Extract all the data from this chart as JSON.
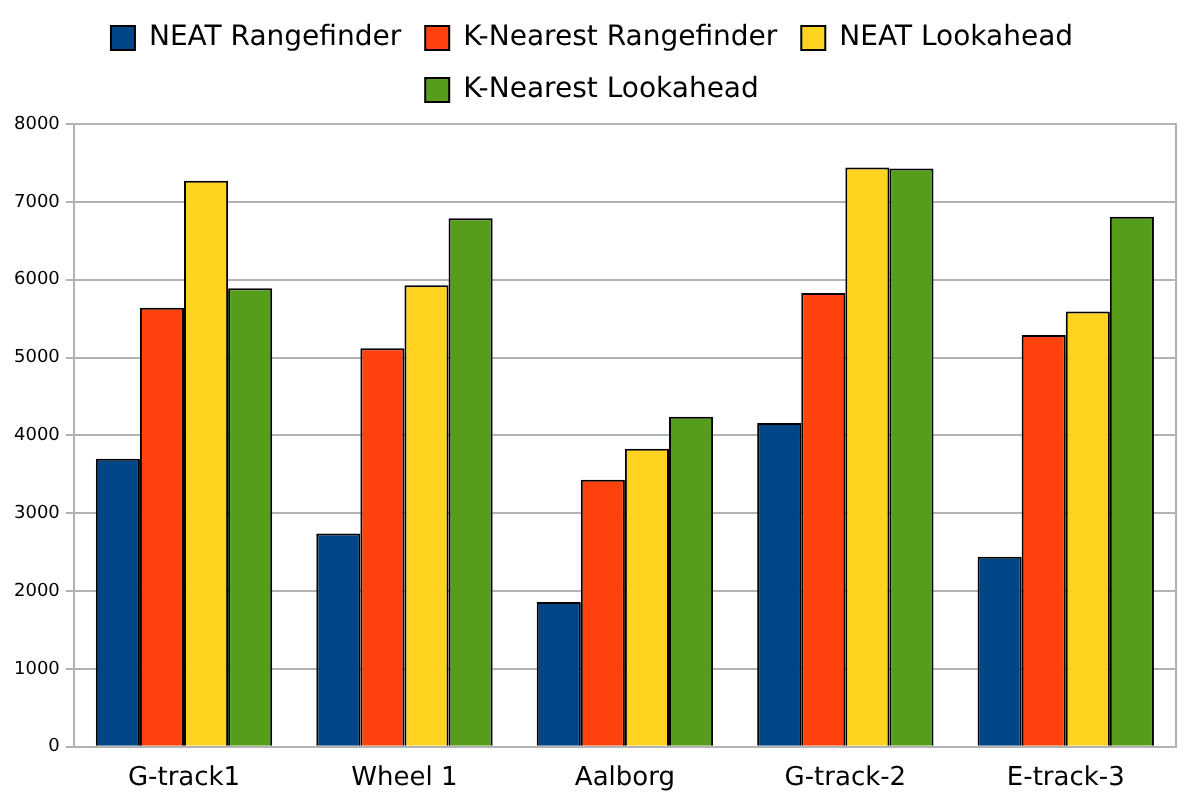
{
  "chart_data": {
    "type": "bar",
    "categories": [
      "G-track1",
      "Wheel 1",
      "Aalborg",
      "G-track-2",
      "E-track-3"
    ],
    "series": [
      {
        "name": "NEAT Rangefinder",
        "color": "#004586",
        "values": [
          3700,
          2740,
          1860,
          4160,
          2440
        ]
      },
      {
        "name": "K-Nearest Rangefinder",
        "color": "#ff420e",
        "values": [
          5640,
          5120,
          3430,
          5830,
          5290
        ]
      },
      {
        "name": "NEAT Lookahead",
        "color": "#ffd320",
        "values": [
          7270,
          5930,
          3830,
          7440,
          5590
        ]
      },
      {
        "name": "K-Nearest Lookahead",
        "color": "#579d1c",
        "values": [
          5890,
          6790,
          4240,
          7430,
          6810
        ]
      }
    ],
    "ylim": [
      0,
      8000
    ],
    "yticks": [
      0,
      1000,
      2000,
      3000,
      4000,
      5000,
      6000,
      7000,
      8000
    ],
    "grid": "y",
    "legend": "top"
  }
}
